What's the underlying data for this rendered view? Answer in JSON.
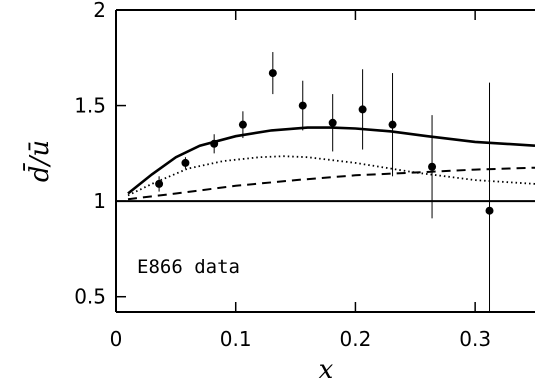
{
  "chart_data": {
    "type": "scatter",
    "title": "",
    "xlabel": "x",
    "ylabel": "d̄/ū",
    "xlim": [
      0,
      0.35
    ],
    "ylim": [
      0.42,
      2.0
    ],
    "x_ticks": [
      0,
      0.1,
      0.2,
      0.3
    ],
    "x_tick_labels": [
      "0",
      "0.1",
      "0.2",
      "0.3"
    ],
    "y_ticks": [
      0.5,
      1,
      1.5,
      2
    ],
    "y_tick_labels": [
      "0.5",
      "1",
      "1.5",
      "2"
    ],
    "grid": false,
    "annotation": "E866 data",
    "reference_line": {
      "y": 1.0,
      "style": "solid"
    },
    "points": [
      {
        "x": 0.036,
        "y": 1.09,
        "err": 0.04
      },
      {
        "x": 0.058,
        "y": 1.2,
        "err": 0.03
      },
      {
        "x": 0.082,
        "y": 1.3,
        "err": 0.05
      },
      {
        "x": 0.106,
        "y": 1.4,
        "err": 0.07
      },
      {
        "x": 0.131,
        "y": 1.67,
        "err": 0.11
      },
      {
        "x": 0.156,
        "y": 1.5,
        "err": 0.13
      },
      {
        "x": 0.181,
        "y": 1.41,
        "err": 0.15
      },
      {
        "x": 0.206,
        "y": 1.48,
        "err": 0.21
      },
      {
        "x": 0.231,
        "y": 1.4,
        "err": 0.27
      },
      {
        "x": 0.264,
        "y": 1.18,
        "err": 0.27
      },
      {
        "x": 0.312,
        "y": 0.95,
        "err": 0.67
      }
    ],
    "curves": [
      {
        "style": "solid",
        "x": [
          0.01,
          0.03,
          0.05,
          0.07,
          0.1,
          0.13,
          0.16,
          0.18,
          0.2,
          0.23,
          0.26,
          0.3,
          0.35
        ],
        "y": [
          1.04,
          1.14,
          1.23,
          1.29,
          1.34,
          1.37,
          1.385,
          1.385,
          1.38,
          1.365,
          1.34,
          1.31,
          1.29
        ]
      },
      {
        "style": "dotted",
        "x": [
          0.01,
          0.03,
          0.06,
          0.09,
          0.12,
          0.14,
          0.16,
          0.2,
          0.25,
          0.3,
          0.35
        ],
        "y": [
          1.03,
          1.09,
          1.17,
          1.21,
          1.23,
          1.235,
          1.23,
          1.2,
          1.15,
          1.11,
          1.09
        ]
      },
      {
        "style": "dashed",
        "x": [
          0.01,
          0.05,
          0.1,
          0.15,
          0.2,
          0.25,
          0.3,
          0.35
        ],
        "y": [
          1.01,
          1.04,
          1.08,
          1.11,
          1.135,
          1.15,
          1.165,
          1.175
        ]
      }
    ]
  }
}
